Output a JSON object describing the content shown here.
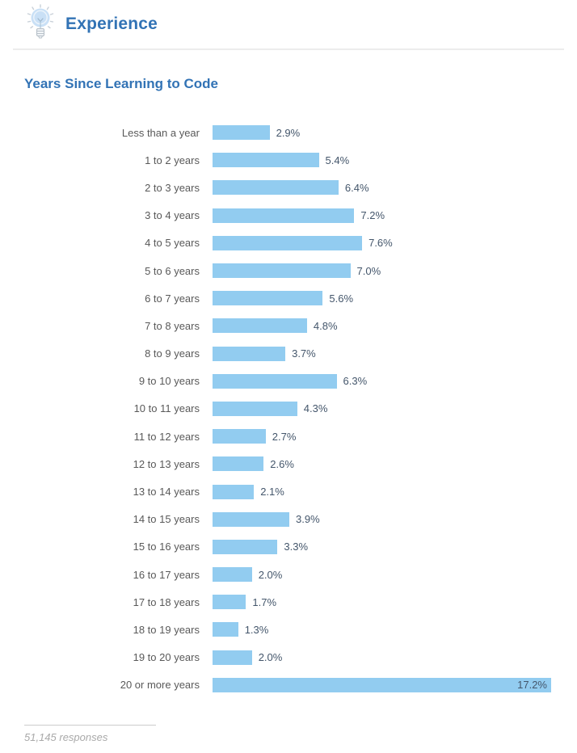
{
  "header": {
    "title": "Experience",
    "icon": "lightbulb-icon"
  },
  "section": {
    "title": "Years Since Learning to Code"
  },
  "footer": {
    "responses": "51,145 responses"
  },
  "colors": {
    "bar": "#92CCF0",
    "title_blue": "#3273B5",
    "category_label": "#595959",
    "value_label": "#44566B",
    "divider": "#ECECEC",
    "footer_text": "#A9A9A9"
  },
  "chart_data": {
    "type": "bar",
    "orientation": "horizontal",
    "title": "Years Since Learning to Code",
    "xlabel": "",
    "ylabel": "",
    "value_suffix": "%",
    "max_value": 17.2,
    "grid": false,
    "legend": false,
    "categories": [
      "Less than a year",
      "1 to 2 years",
      "2 to 3 years",
      "3 to 4 years",
      "4 to 5 years",
      "5 to 6 years",
      "6 to 7 years",
      "7 to 8 years",
      "8 to 9 years",
      "9 to 10 years",
      "10 to 11 years",
      "11 to 12 years",
      "12 to 13 years",
      "13 to 14 years",
      "14 to 15 years",
      "15 to 16 years",
      "16 to 17 years",
      "17 to 18 years",
      "18 to 19 years",
      "19 to 20 years",
      "20 or more years"
    ],
    "values": [
      2.9,
      5.4,
      6.4,
      7.2,
      7.6,
      7.0,
      5.6,
      4.8,
      3.7,
      6.3,
      4.3,
      2.7,
      2.6,
      2.1,
      3.9,
      3.3,
      2.0,
      1.7,
      1.3,
      2.0,
      17.2
    ]
  }
}
